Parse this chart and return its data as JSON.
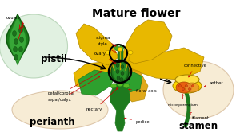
{
  "title": "Mature flower",
  "bg_color": "#ffffff",
  "pistil_bubble_color": "#d8edd8",
  "pistil_bubble_border": "#aaccaa",
  "perianth_bubble_color": "#f5e6c8",
  "perianth_bubble_border": "#d4b896",
  "stamen_bubble_color": "#f5e6c8",
  "stamen_bubble_border": "#d4b896",
  "green_dark": "#1e7a1e",
  "green_mid": "#2ea02e",
  "green_light": "#55bb22",
  "yellow_petal": "#e8b800",
  "yellow_bright": "#ffd700",
  "yellow_light": "#ffe566",
  "orange_anther": "#e86010",
  "red_dot": "#cc0000",
  "pistil_label": "pistil",
  "perianth_label": "perianth",
  "stamen_label": "stamen"
}
